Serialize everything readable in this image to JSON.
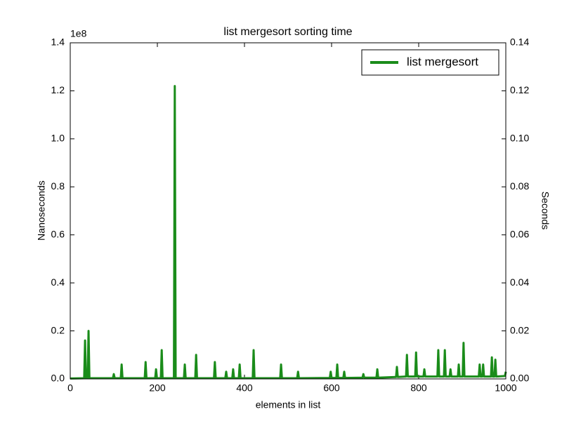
{
  "chart_data": {
    "type": "line",
    "title": "list mergesort sorting time",
    "x_label": "elements in list",
    "y_label": "Nanoseconds",
    "y2_label": "Seconds",
    "y_offset_label": "1e8",
    "legend": "upper right",
    "x": [
      0,
      32,
      34,
      36,
      40,
      42,
      44,
      98,
      100,
      102,
      116,
      118,
      120,
      171,
      173,
      175,
      195,
      197,
      199,
      208,
      210,
      212,
      238,
      240,
      242,
      261,
      263,
      265,
      287,
      289,
      291,
      330,
      332,
      334,
      356,
      358,
      360,
      372,
      374,
      376,
      387,
      389,
      391,
      419,
      421,
      423,
      482,
      484,
      486,
      521,
      523,
      525,
      596,
      598,
      600,
      611,
      613,
      615,
      627,
      629,
      631,
      671,
      673,
      675,
      703,
      705,
      707,
      748,
      750,
      752,
      771,
      773,
      775,
      792,
      794,
      796,
      811,
      813,
      815,
      843,
      845,
      847,
      858,
      860,
      862,
      871,
      873,
      875,
      890,
      892,
      894,
      901,
      903,
      905,
      938,
      940,
      942,
      946,
      948,
      950,
      966,
      968,
      970,
      974,
      976,
      978,
      998,
      1000
    ],
    "series": [
      {
        "name": "list mergesort",
        "color": "#1a8c1a",
        "values": [
          0.002,
          0.003,
          0.16,
          0.003,
          0.003,
          0.2,
          0.003,
          0.003,
          0.02,
          0.003,
          0.003,
          0.06,
          0.003,
          0.003,
          0.07,
          0.003,
          0.003,
          0.04,
          0.003,
          0.003,
          0.12,
          0.003,
          0.003,
          1.22,
          0.003,
          0.003,
          0.06,
          0.003,
          0.003,
          0.1,
          0.003,
          0.003,
          0.07,
          0.003,
          0.003,
          0.03,
          0.003,
          0.003,
          0.04,
          0.003,
          0.003,
          0.06,
          0.003,
          0.003,
          0.12,
          0.003,
          0.003,
          0.06,
          0.003,
          0.003,
          0.03,
          0.003,
          0.004,
          0.03,
          0.004,
          0.004,
          0.06,
          0.004,
          0.004,
          0.03,
          0.004,
          0.005,
          0.02,
          0.005,
          0.005,
          0.04,
          0.005,
          0.008,
          0.05,
          0.008,
          0.01,
          0.1,
          0.01,
          0.01,
          0.11,
          0.01,
          0.01,
          0.04,
          0.01,
          0.01,
          0.12,
          0.01,
          0.01,
          0.12,
          0.01,
          0.01,
          0.04,
          0.01,
          0.01,
          0.06,
          0.01,
          0.01,
          0.15,
          0.01,
          0.01,
          0.06,
          0.01,
          0.01,
          0.06,
          0.01,
          0.01,
          0.09,
          0.01,
          0.01,
          0.08,
          0.01,
          0.012,
          0.03
        ]
      }
    ],
    "xlim": [
      0,
      1000
    ],
    "xticks": [
      0,
      200,
      400,
      600,
      800,
      1000
    ],
    "ylim": [
      0,
      1.4
    ],
    "yticks": [
      {
        "value": 0,
        "label": "0.0"
      },
      0.2,
      0.4,
      0.6,
      0.8,
      {
        "value": 1,
        "label": "1.0"
      },
      1.2,
      1.4
    ],
    "y2lim": [
      0,
      0.14
    ],
    "y2ticks": [
      {
        "value": 0,
        "label": "0.00"
      },
      0.02,
      0.04,
      0.06,
      0.08,
      {
        "value": 0.1,
        "label": "0.10"
      },
      0.12,
      0.14
    ],
    "grid": false
  }
}
